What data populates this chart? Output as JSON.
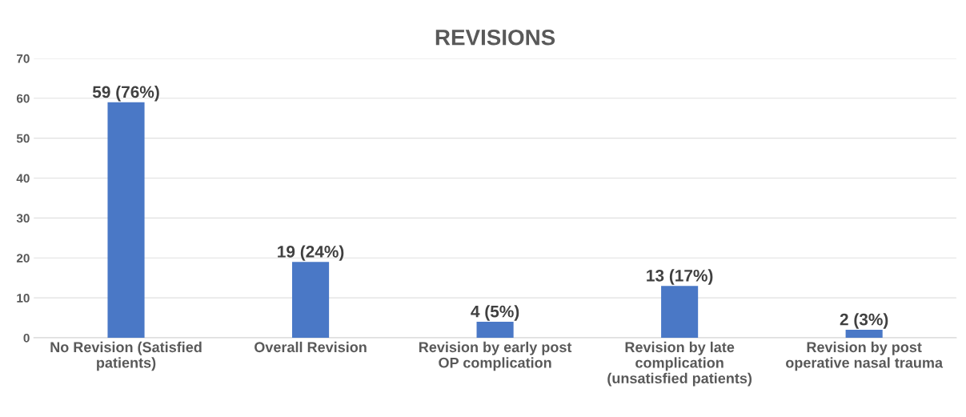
{
  "chart_data": {
    "type": "bar",
    "title": "REVISIONS",
    "categories": [
      "No Revision (Satisfied\npatients)",
      "Overall Revision",
      "Revision by early post\nOP complication",
      "Revision by late\ncomplication\n(unsatisfied patients)",
      "Revision by post\noperative nasal trauma"
    ],
    "values": [
      59,
      19,
      4,
      13,
      2
    ],
    "value_labels": [
      "59 (76%)",
      "19 (24%)",
      "4 (5%)",
      "13 (17%)",
      "2 (3%)"
    ],
    "color": "#4a78c6",
    "ylim": [
      0,
      70
    ],
    "yticks": [
      0,
      10,
      20,
      30,
      40,
      50,
      60,
      70
    ],
    "grid": "y"
  }
}
